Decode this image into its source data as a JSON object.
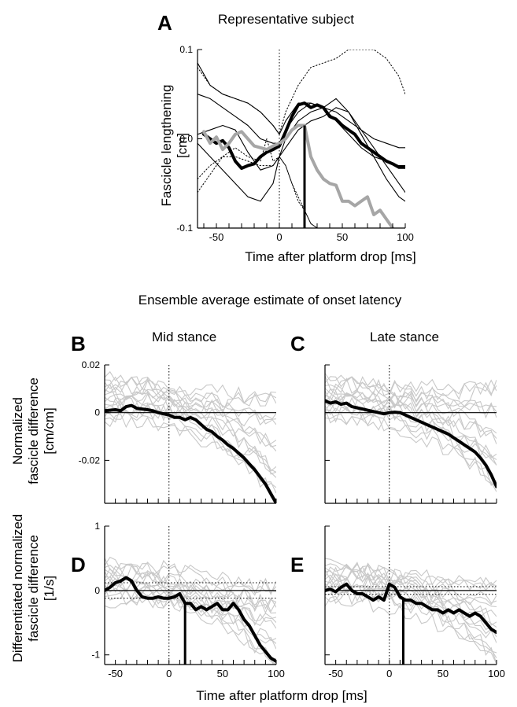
{
  "page": {
    "section_title": "Ensemble average estimate of onset latency",
    "xlabel_bottom": "Time after platform drop [ms]"
  },
  "chart_data": [
    {
      "panel": "A",
      "type": "line",
      "title": "Representative subject",
      "xlabel": "Time after platform drop [ms]",
      "ylabel_lines": [
        "Fascicle lengthening",
        "[cm]"
      ],
      "xlim": [
        -65,
        100
      ],
      "ylim": [
        -0.1,
        0.1
      ],
      "xticks": [
        -50,
        0,
        50,
        100
      ],
      "xtick_labels": [
        "-50",
        "0",
        "50",
        "100"
      ],
      "yticks": [
        -0.1,
        0.0,
        0.1
      ],
      "ytick_labels": [
        "-0.1",
        "0.0",
        "0.1"
      ],
      "zero_line": false,
      "vline_x": 0,
      "onset_x": 20,
      "colors": {
        "thin": "#000000",
        "dotted": "#000000",
        "thick_black": "#000000",
        "thick_gray": "#a6a6a6"
      },
      "series": [
        {
          "style": "thin",
          "x": [
            -65,
            -55,
            -45,
            -35,
            -25,
            -15,
            -5,
            0,
            5,
            15,
            25,
            35,
            45,
            55,
            65,
            75,
            85,
            95,
            100
          ],
          "y": [
            0.085,
            0.06,
            0.05,
            0.045,
            0.04,
            0.03,
            0.015,
            0.005,
            0.02,
            0.04,
            0.04,
            0.035,
            0.03,
            0.02,
            0.01,
            0.0,
            -0.005,
            -0.01,
            -0.01
          ]
        },
        {
          "style": "thin",
          "x": [
            -65,
            -55,
            -45,
            -35,
            -25,
            -15,
            -5,
            0,
            5,
            15,
            25,
            35,
            45,
            55,
            65,
            75,
            85,
            95,
            100
          ],
          "y": [
            0.05,
            0.045,
            0.035,
            0.025,
            0.015,
            0.0,
            -0.005,
            -0.005,
            0.01,
            0.03,
            0.04,
            0.035,
            0.02,
            0.005,
            -0.01,
            -0.02,
            -0.025,
            -0.03,
            -0.03
          ]
        },
        {
          "style": "thin",
          "x": [
            -65,
            -55,
            -45,
            -35,
            -25,
            -15,
            -5,
            0,
            5,
            15,
            25,
            35,
            45,
            55,
            65,
            75,
            85,
            95,
            100
          ],
          "y": [
            -0.005,
            -0.02,
            -0.035,
            -0.05,
            -0.065,
            -0.07,
            -0.05,
            -0.02,
            -0.01,
            0.01,
            0.02,
            0.025,
            0.035,
            0.03,
            0.01,
            -0.01,
            -0.03,
            -0.05,
            -0.06
          ]
        },
        {
          "style": "thin",
          "x": [
            -65,
            -55,
            -45,
            -35,
            -25,
            -15,
            -5,
            0,
            5,
            15,
            25,
            35,
            45,
            55,
            65,
            75,
            85,
            95,
            100
          ],
          "y": [
            0.005,
            0.01,
            0.015,
            0.01,
            -0.015,
            -0.035,
            -0.03,
            -0.02,
            0.0,
            0.02,
            0.03,
            0.035,
            0.045,
            0.03,
            0.005,
            -0.02,
            -0.045,
            -0.065,
            -0.07
          ]
        },
        {
          "style": "dotted",
          "x": [
            -65,
            -55,
            -45,
            -35,
            -25,
            -15,
            -5,
            0,
            5,
            15,
            20,
            25,
            35,
            45,
            55,
            65,
            75,
            85,
            95,
            100
          ],
          "y": [
            0.08,
            0.06,
            0.05,
            0.045,
            0.04,
            0.03,
            0.015,
            0.005,
            0.03,
            0.06,
            0.07,
            0.08,
            0.085,
            0.09,
            0.1,
            0.1,
            0.1,
            0.09,
            0.07,
            0.05
          ]
        },
        {
          "style": "dotted",
          "x": [
            -65,
            -55,
            -45,
            -35,
            -25,
            -15,
            -10,
            -5,
            0,
            5,
            10,
            15,
            20,
            25,
            30,
            35
          ],
          "y": [
            -0.06,
            -0.04,
            -0.02,
            -0.01,
            -0.02,
            -0.025,
            0.0,
            -0.025,
            -0.02,
            -0.03,
            -0.05,
            -0.07,
            -0.08,
            -0.095,
            -0.1,
            -0.1
          ]
        },
        {
          "style": "dotted",
          "x": [
            -65,
            -55,
            -45,
            -35,
            -25,
            -15,
            -5,
            0,
            5,
            10,
            15,
            20,
            25,
            30
          ],
          "y": [
            -0.045,
            -0.03,
            -0.02,
            -0.02,
            -0.025,
            -0.03,
            -0.03,
            -0.02,
            -0.03,
            -0.05,
            -0.065,
            -0.08,
            -0.095,
            -0.1
          ]
        },
        {
          "style": "thick_black",
          "x": [
            -60,
            -55,
            -50,
            -45,
            -40,
            -35,
            -30,
            -25,
            -20,
            -15,
            -10,
            -5,
            0,
            5,
            10,
            15,
            20,
            25,
            30,
            35,
            40,
            45,
            50,
            55,
            60,
            65,
            70,
            75,
            80,
            85,
            90,
            95,
            100
          ],
          "y": [
            0.005,
            0.0,
            -0.005,
            -0.002,
            -0.01,
            -0.025,
            -0.033,
            -0.03,
            -0.028,
            -0.02,
            -0.015,
            -0.012,
            -0.008,
            0.008,
            0.025,
            0.038,
            0.04,
            0.035,
            0.038,
            0.035,
            0.025,
            0.022,
            0.015,
            0.01,
            0.005,
            -0.005,
            -0.01,
            -0.015,
            -0.02,
            -0.025,
            -0.028,
            -0.032,
            -0.032
          ]
        },
        {
          "style": "thick_gray",
          "x": [
            -60,
            -55,
            -50,
            -45,
            -40,
            -35,
            -30,
            -25,
            -20,
            -15,
            -10,
            -5,
            0,
            5,
            10,
            15,
            20,
            25,
            30,
            35,
            40,
            45,
            50,
            55,
            60,
            65,
            70,
            75,
            80,
            85,
            90
          ],
          "y": [
            0.008,
            -0.005,
            0.002,
            -0.012,
            -0.005,
            0.005,
            0.008,
            0.0,
            -0.008,
            -0.01,
            -0.012,
            -0.008,
            -0.005,
            0.0,
            0.01,
            0.015,
            0.015,
            -0.02,
            -0.035,
            -0.045,
            -0.05,
            -0.052,
            -0.07,
            -0.07,
            -0.075,
            -0.07,
            -0.065,
            -0.085,
            -0.08,
            -0.09,
            -0.1
          ]
        }
      ]
    },
    {
      "panel": "B",
      "type": "line",
      "title": "Mid stance",
      "ylabel_lines": [
        "Normalized",
        "fascicle difference",
        "[cm/cm]"
      ],
      "xlim": [
        -60,
        100
      ],
      "ylim": [
        -0.038,
        0.02
      ],
      "xticks": [
        -50,
        0,
        50,
        100
      ],
      "xtick_labels": [],
      "yticks": [
        0.02,
        0,
        -0.02
      ],
      "ytick_labels": [
        "0.02",
        "0",
        "-0.02"
      ],
      "zero_line": true,
      "vline_x": 0,
      "colors": {
        "thin": "#c8c8c8",
        "thick": "#000000"
      },
      "thin_seed": 11,
      "thin_count": 16,
      "thin_start_range": [
        -0.01,
        0.02
      ],
      "thin_end_range": [
        -0.038,
        0.013
      ],
      "thick": {
        "x": [
          -60,
          -50,
          -45,
          -40,
          -35,
          -30,
          -25,
          -20,
          -15,
          -10,
          -5,
          0,
          5,
          10,
          15,
          20,
          25,
          30,
          35,
          40,
          45,
          50,
          55,
          60,
          65,
          70,
          75,
          80,
          85,
          90,
          95,
          100
        ],
        "y": [
          0.0008,
          0.0012,
          0.0008,
          0.0025,
          0.003,
          0.0018,
          0.0015,
          0.0012,
          0.0008,
          0.0,
          -0.0005,
          -0.001,
          -0.002,
          -0.002,
          -0.003,
          -0.002,
          -0.003,
          -0.005,
          -0.007,
          -0.008,
          -0.01,
          -0.0115,
          -0.0135,
          -0.015,
          -0.017,
          -0.019,
          -0.0215,
          -0.024,
          -0.027,
          -0.03,
          -0.034,
          -0.038
        ]
      }
    },
    {
      "panel": "C",
      "type": "line",
      "title": "Late stance",
      "xlim": [
        -60,
        100
      ],
      "ylim": [
        -0.038,
        0.02
      ],
      "xticks": [
        -50,
        0,
        50,
        100
      ],
      "xtick_labels": [],
      "yticks": [
        0.02,
        0,
        -0.02
      ],
      "ytick_labels": [],
      "zero_line": true,
      "vline_x": 0,
      "colors": {
        "thin": "#c8c8c8",
        "thick": "#000000"
      },
      "thin_seed": 23,
      "thin_count": 16,
      "thin_start_range": [
        -0.01,
        0.02
      ],
      "thin_end_range": [
        -0.038,
        0.013
      ],
      "thick": {
        "x": [
          -60,
          -55,
          -50,
          -45,
          -40,
          -35,
          -30,
          -25,
          -20,
          -15,
          -10,
          -5,
          0,
          5,
          10,
          15,
          20,
          25,
          30,
          35,
          40,
          45,
          50,
          55,
          60,
          65,
          70,
          75,
          80,
          85,
          90,
          95,
          100
        ],
        "y": [
          0.005,
          0.004,
          0.0045,
          0.0035,
          0.004,
          0.0025,
          0.002,
          0.0015,
          0.001,
          0.0005,
          0.0,
          -0.0005,
          0.0,
          0.0002,
          0.0,
          -0.001,
          -0.002,
          -0.003,
          -0.004,
          -0.005,
          -0.006,
          -0.007,
          -0.008,
          -0.009,
          -0.0105,
          -0.012,
          -0.0135,
          -0.015,
          -0.0165,
          -0.019,
          -0.022,
          -0.026,
          -0.031
        ]
      }
    },
    {
      "panel": "D",
      "type": "line",
      "ylabel_lines": [
        "Differentiated normalized",
        "fascicle difference",
        "[1/s]"
      ],
      "xlim": [
        -60,
        100
      ],
      "ylim": [
        -1.15,
        1.0
      ],
      "xticks": [
        -50,
        0,
        50,
        100
      ],
      "xtick_labels": [
        "-50",
        "0",
        "50",
        "100"
      ],
      "yticks": [
        1,
        0,
        -1
      ],
      "ytick_labels": [
        "1",
        "0",
        "-1"
      ],
      "zero_line": true,
      "threshold_lines": [
        0.12,
        -0.12
      ],
      "vline_x": 0,
      "onset_x": 15,
      "colors": {
        "thin": "#c8c8c8",
        "thick": "#000000"
      },
      "thin_seed": 37,
      "thin_count": 16,
      "thin_start_range": [
        -0.4,
        0.6
      ],
      "thin_end_range": [
        -1.15,
        0.3
      ],
      "thick": {
        "x": [
          -60,
          -55,
          -50,
          -45,
          -40,
          -35,
          -30,
          -25,
          -20,
          -15,
          -10,
          -5,
          0,
          5,
          10,
          15,
          20,
          25,
          30,
          35,
          40,
          45,
          50,
          55,
          60,
          65,
          70,
          75,
          80,
          85,
          90,
          95,
          100
        ],
        "y": [
          0.0,
          0.05,
          0.12,
          0.15,
          0.2,
          0.15,
          0.0,
          -0.1,
          -0.12,
          -0.12,
          -0.1,
          -0.12,
          -0.12,
          -0.1,
          -0.05,
          -0.2,
          -0.2,
          -0.3,
          -0.25,
          -0.3,
          -0.25,
          -0.2,
          -0.3,
          -0.3,
          -0.2,
          -0.3,
          -0.45,
          -0.55,
          -0.7,
          -0.85,
          -0.95,
          -1.05,
          -1.1
        ]
      }
    },
    {
      "panel": "E",
      "type": "line",
      "xlim": [
        -60,
        100
      ],
      "ylim": [
        -1.15,
        1.0
      ],
      "xticks": [
        -50,
        0,
        50,
        100
      ],
      "xtick_labels": [
        "-50",
        "0",
        "50",
        "100"
      ],
      "yticks": [
        1,
        0,
        -1
      ],
      "ytick_labels": [],
      "zero_line": true,
      "threshold_lines": [
        0.06,
        -0.06
      ],
      "vline_x": 0,
      "onset_x": 13,
      "colors": {
        "thin": "#c8c8c8",
        "thick": "#000000"
      },
      "thin_seed": 53,
      "thin_count": 16,
      "thin_start_range": [
        -0.4,
        0.6
      ],
      "thin_end_range": [
        -1.15,
        0.3
      ],
      "thick": {
        "x": [
          -60,
          -55,
          -50,
          -45,
          -40,
          -35,
          -30,
          -25,
          -20,
          -15,
          -10,
          -5,
          0,
          5,
          10,
          15,
          20,
          25,
          30,
          35,
          40,
          45,
          50,
          55,
          60,
          65,
          70,
          75,
          80,
          85,
          90,
          95,
          100
        ],
        "y": [
          0.0,
          0.02,
          -0.02,
          0.05,
          0.1,
          0.0,
          -0.05,
          -0.05,
          -0.1,
          -0.15,
          -0.1,
          -0.15,
          0.1,
          0.05,
          -0.1,
          -0.15,
          -0.15,
          -0.2,
          -0.2,
          -0.25,
          -0.3,
          -0.3,
          -0.35,
          -0.3,
          -0.35,
          -0.3,
          -0.35,
          -0.4,
          -0.35,
          -0.4,
          -0.5,
          -0.6,
          -0.65
        ]
      }
    }
  ]
}
